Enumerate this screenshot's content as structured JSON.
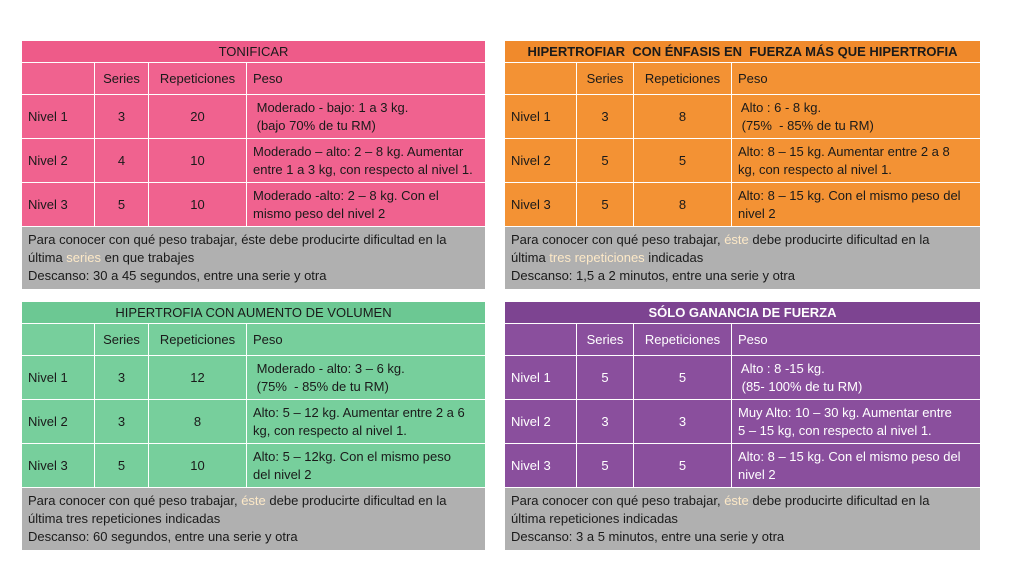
{
  "tables": [
    {
      "title": "TONIFICAR",
      "headers": [
        "",
        "Series",
        "Repeticiones",
        "Peso"
      ],
      "rows": [
        {
          "level": "Nivel 1",
          "series": "3",
          "reps": "20",
          "peso1": " Moderado - bajo: 1 a 3 kg.",
          "peso2": " (bajo 70% de tu RM)"
        },
        {
          "level": "Nivel 2",
          "series": "4",
          "reps": "10",
          "peso1": "Moderado – alto: 2 – 8 kg. Aumentar",
          "peso2": "entre 1 a 3 kg, con respecto al nivel 1."
        },
        {
          "level": "Nivel 3",
          "series": "5",
          "reps": "10",
          "peso1": "Moderado -alto: 2 – 8 kg. Con el",
          "peso2": "mismo peso del nivel 2"
        }
      ],
      "footer": {
        "l1a": "Para conocer con qué peso trabajar, éste debe producirte dificultad en la",
        "l2a": "última ",
        "l2hl": "series",
        "l2b": " en que trabajes",
        "l3": "Descanso: 30 a 45 segundos, entre una serie y otra"
      }
    },
    {
      "title": "HIPERTROFIAR  CON ÉNFASIS EN  FUERZA MÁS QUE HIPERTROFIA",
      "headers": [
        "",
        "Series",
        "Repeticiones",
        "Peso"
      ],
      "rows": [
        {
          "level": "Nivel 1",
          "series": "3",
          "reps": "8",
          "peso1": " Alto : 6 - 8 kg.",
          "peso2": " (75%  - 85% de tu RM)"
        },
        {
          "level": "Nivel 2",
          "series": "5",
          "reps": "5",
          "peso1": "Alto: 8 – 15 kg. Aumentar entre 2 a 8",
          "peso2": "kg, con respecto al nivel 1."
        },
        {
          "level": "Nivel 3",
          "series": "5",
          "reps": "8",
          "peso1": "Alto: 8 – 15 kg.  Con el mismo peso del",
          "peso2": "nivel 2"
        }
      ],
      "footer": {
        "l1a": "Para conocer con qué peso trabajar, ",
        "l1hl": "éste",
        "l1b": " debe producirte dificultad en la",
        "l2a": "última ",
        "l2hl": "tres repeticiones",
        "l2b": " indicadas",
        "l3": "Descanso: 1,5 a 2 minutos, entre una serie y otra"
      }
    },
    {
      "title": "HIPERTROFIA CON AUMENTO DE VOLUMEN",
      "headers": [
        "",
        "Series",
        "Repeticiones",
        "Peso"
      ],
      "rows": [
        {
          "level": "Nivel 1",
          "series": "3",
          "reps": "12",
          "peso1": " Moderado - alto: 3 – 6 kg.",
          "peso2": " (75%  - 85% de tu RM)"
        },
        {
          "level": "Nivel 2",
          "series": "3",
          "reps": "8",
          "peso1": "Alto: 5 – 12 kg. Aumentar entre 2 a 6",
          "peso2": "kg, con respecto al nivel 1."
        },
        {
          "level": "Nivel 3",
          "series": "5",
          "reps": "10",
          "peso1": "Alto: 5 – 12kg.  Con el mismo peso",
          "peso2": "del nivel 2"
        }
      ],
      "footer": {
        "l1a": "Para conocer con qué peso trabajar, ",
        "l1hl": "éste",
        "l1b": " debe producirte dificultad en la",
        "l2a": "última tres repeticiones indicadas",
        "l3": "Descanso: 60 segundos, entre una serie y otra"
      }
    },
    {
      "title": "SÓLO GANANCIA DE FUERZA",
      "headers": [
        "",
        "Series",
        "Repeticiones",
        "Peso"
      ],
      "rows": [
        {
          "level": "Nivel 1",
          "series": "5",
          "reps": "5",
          "peso1": " Alto : 8 -15 kg.",
          "peso2": " (85- 100% de tu RM)"
        },
        {
          "level": "Nivel 2",
          "series": "3",
          "reps": "3",
          "peso1": "Muy Alto: 10 – 30 kg. Aumentar entre",
          "peso2": "5 – 15 kg, con respecto al nivel 1."
        },
        {
          "level": "Nivel 3",
          "series": "5",
          "reps": "5",
          "peso1": "Alto: 8 – 15 kg.  Con el mismo peso del",
          "peso2": "nivel 2"
        }
      ],
      "footer": {
        "l1a": "Para conocer con qué peso trabajar, ",
        "l1hl": "éste",
        "l1b": " debe producirte dificultad en la",
        "l2a": "última repeticiones indicadas",
        "l3": "Descanso: 3 a 5 minutos, entre una serie y otra"
      }
    }
  ]
}
